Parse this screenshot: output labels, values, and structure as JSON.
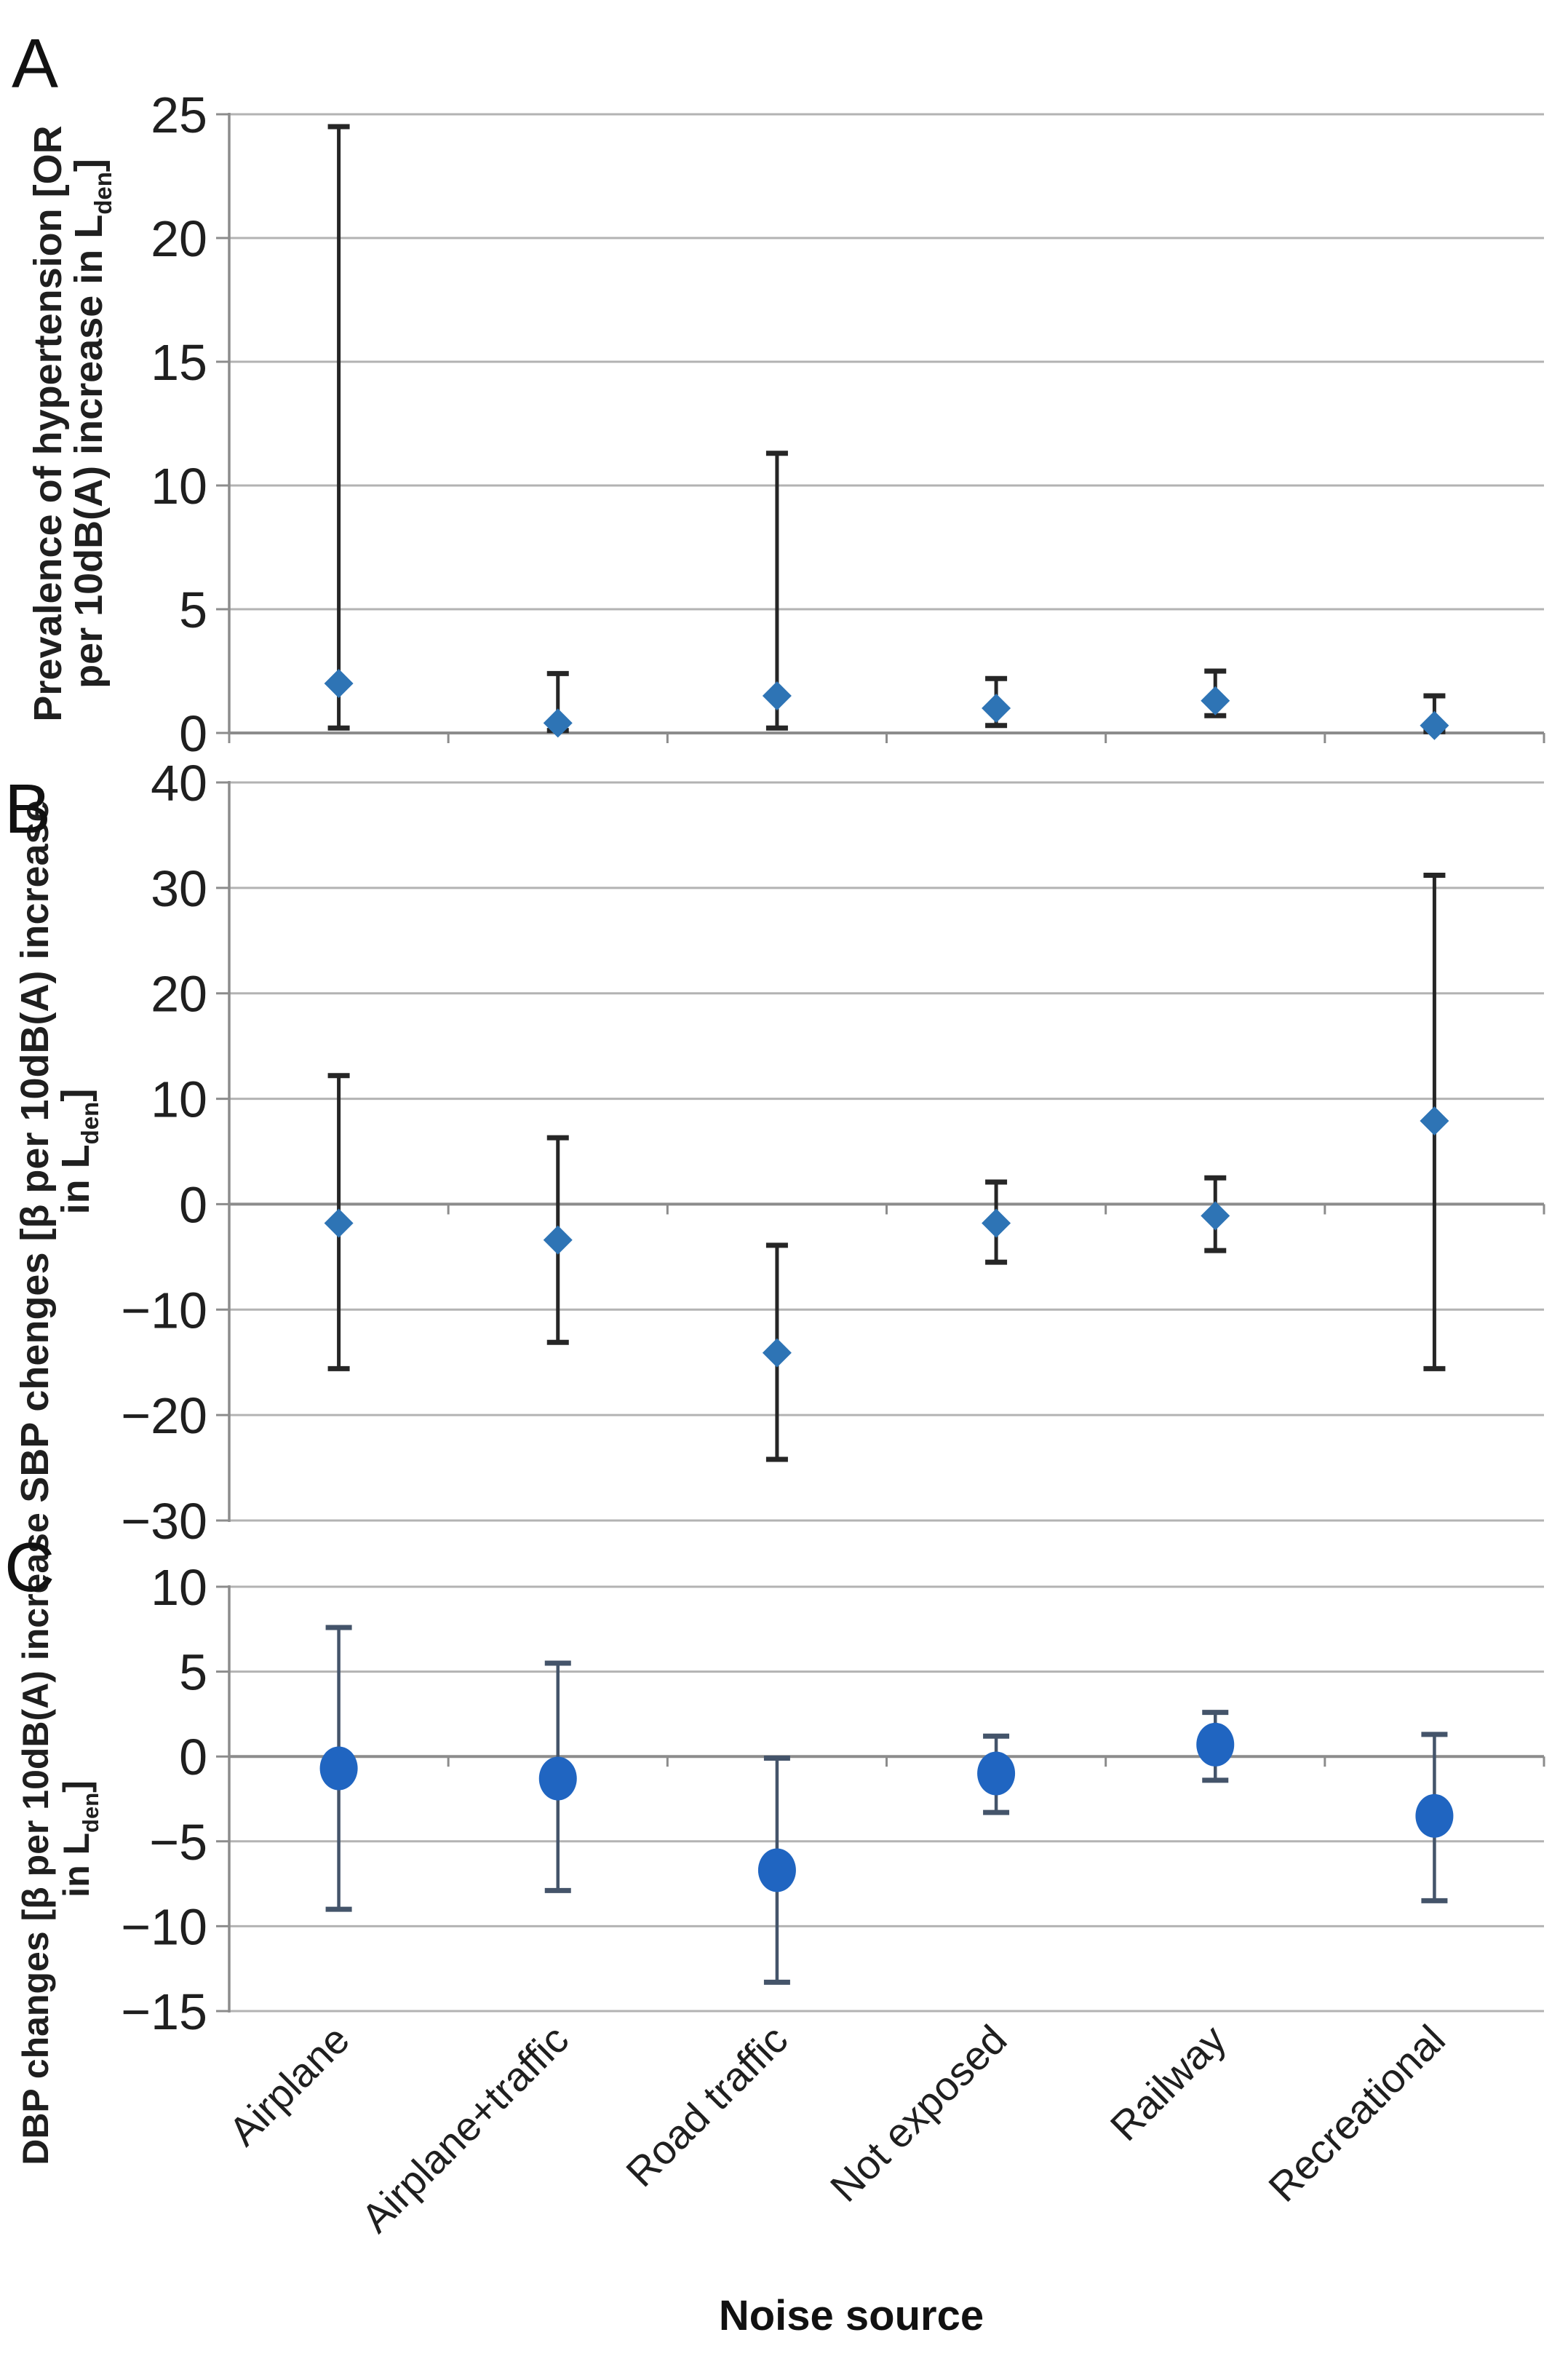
{
  "figure": {
    "x_axis_title": "Noise source",
    "colors": {
      "gridline": "#B3B3B3",
      "axis": "#8C8C8C",
      "text": "#1F1F1F",
      "marker_blue": "#2E74B5",
      "marker_blue_bright": "#2065C1",
      "errorbar_dark": "#262626",
      "errorbar_slate": "#44546A"
    }
  },
  "chart_data": [
    {
      "type": "scatter",
      "panel_label": "A",
      "marker": "diamond",
      "marker_color": "#2E74B5",
      "errorbar_color": "#262626",
      "title": "",
      "xlabel": "",
      "ylabel": "Prevalence of hypertension [OR per 10dB(A) increase in Lden]",
      "ylabel_lines": [
        "Prevalence of hypertension [OR",
        "per 10dB(A) increase in L{den}]"
      ],
      "ylim": [
        0,
        25
      ],
      "y_ticks": [
        25,
        20,
        15,
        10,
        5,
        0
      ],
      "grid": true,
      "legend": "none",
      "categories": [
        "Airplane",
        "Airplane+traffic",
        "Road traffic",
        "Not exposed",
        "Railway",
        "Recreational"
      ],
      "values": [
        2.0,
        0.4,
        1.5,
        1.0,
        1.3,
        0.3
      ],
      "ci_low": [
        0.2,
        0.1,
        0.2,
        0.3,
        0.7,
        0.05
      ],
      "ci_high": [
        24.5,
        2.4,
        11.3,
        2.2,
        2.5,
        1.5
      ]
    },
    {
      "type": "scatter",
      "panel_label": "B",
      "marker": "diamond",
      "marker_color": "#2E74B5",
      "errorbar_color": "#262626",
      "title": "",
      "xlabel": "",
      "ylabel": "SBP chenges [β per 10dB(A) increase in Lden]",
      "ylabel_lines": [
        "SBP chenges [β per 10dB(A) increase",
        "in L{den}]"
      ],
      "ylim": [
        -30,
        40
      ],
      "y_ticks": [
        40,
        30,
        20,
        10,
        0,
        -10,
        -20,
        -30
      ],
      "grid": true,
      "legend": "none",
      "categories": [
        "Airplane",
        "Airplane+traffic",
        "Road traffic",
        "Not exposed",
        "Railway",
        "Recreational"
      ],
      "values": [
        -1.8,
        -3.4,
        -14.1,
        -1.8,
        -1.1,
        7.9
      ],
      "ci_low": [
        -15.6,
        -13.1,
        -24.2,
        -5.5,
        -4.4,
        -15.6
      ],
      "ci_high": [
        12.2,
        6.3,
        -3.9,
        2.1,
        2.5,
        31.2
      ]
    },
    {
      "type": "scatter",
      "panel_label": "C",
      "marker": "circle",
      "marker_color": "#2065C1",
      "errorbar_color": "#44546A",
      "title": "",
      "xlabel": "Noise source",
      "ylabel": "DBP changes [β per 10dB(A) increase in Lden]",
      "ylabel_lines": [
        "DBP changes [β per 10dB(A) increase",
        "in L{den}]"
      ],
      "ylim": [
        -15,
        10
      ],
      "y_ticks": [
        10,
        5,
        0,
        -5,
        -10,
        -15
      ],
      "grid": true,
      "legend": "none",
      "categories": [
        "Airplane",
        "Airplane+traffic",
        "Road traffic",
        "Not exposed",
        "Railway",
        "Recreational"
      ],
      "values": [
        -0.7,
        -1.3,
        -6.7,
        -1.0,
        0.7,
        -3.5
      ],
      "ci_low": [
        -9.0,
        -7.9,
        -13.3,
        -3.3,
        -1.4,
        -8.5
      ],
      "ci_high": [
        7.6,
        5.5,
        -0.1,
        1.2,
        2.6,
        1.3
      ]
    }
  ]
}
